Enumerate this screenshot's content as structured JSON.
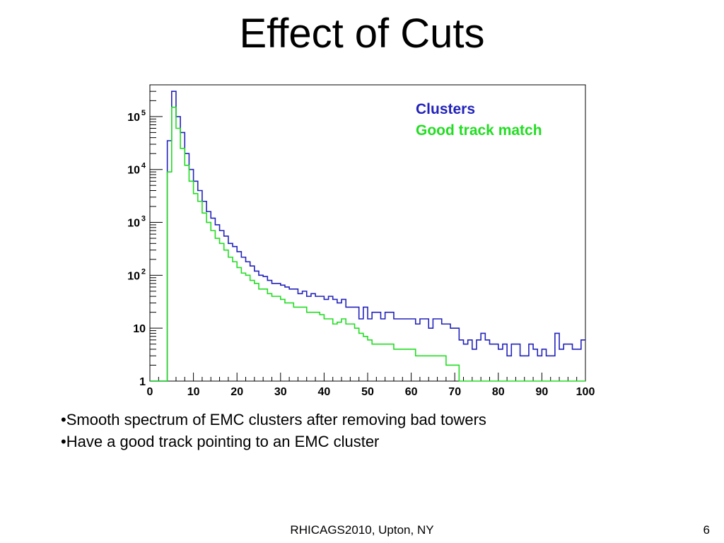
{
  "slide": {
    "title": "Effect of Cuts",
    "bullets": [
      "•Smooth spectrum of EMC clusters after removing bad towers",
      "•Have a good track pointing to an EMC cluster"
    ],
    "footer": "RHICAGS2010, Upton, NY",
    "page_number": "6"
  },
  "chart_data": {
    "type": "line",
    "style": "step-histogram",
    "title": "",
    "xlabel": "",
    "ylabel": "",
    "xlim": [
      0,
      100
    ],
    "ylim": [
      1,
      500000
    ],
    "y_scale": "log",
    "x_ticks": [
      0,
      10,
      20,
      30,
      40,
      50,
      60,
      70,
      80,
      90,
      100
    ],
    "x_tick_labels": [
      "0",
      "10",
      "20",
      "30",
      "40",
      "50",
      "60",
      "70",
      "80",
      "90",
      "100"
    ],
    "y_ticks": [
      1,
      10,
      100,
      1000,
      10000,
      100000
    ],
    "y_tick_labels": [
      {
        "base": "1",
        "exp": ""
      },
      {
        "base": "10",
        "exp": ""
      },
      {
        "base": "10",
        "exp": "2"
      },
      {
        "base": "10",
        "exp": "3"
      },
      {
        "base": "10",
        "exp": "4"
      },
      {
        "base": "10",
        "exp": "5"
      }
    ],
    "grid": false,
    "legend_position": "top-right",
    "bin_edges_start": 0,
    "bin_width": 1,
    "series": [
      {
        "name": "Clusters",
        "color": "#2222bb",
        "values": [
          0,
          0,
          0,
          0,
          35000,
          300000,
          100000,
          50000,
          20000,
          10000,
          6000,
          4000,
          2500,
          1600,
          1200,
          900,
          700,
          550,
          400,
          350,
          280,
          220,
          180,
          150,
          120,
          100,
          95,
          80,
          70,
          70,
          65,
          60,
          55,
          55,
          45,
          50,
          40,
          45,
          40,
          40,
          35,
          40,
          35,
          30,
          35,
          25,
          25,
          25,
          15,
          25,
          15,
          20,
          20,
          15,
          20,
          20,
          15,
          15,
          15,
          15,
          15,
          12,
          15,
          15,
          10,
          15,
          15,
          12,
          12,
          10,
          10,
          6,
          5,
          6,
          4,
          6,
          8,
          6,
          5,
          5,
          4,
          5,
          3,
          5,
          5,
          3,
          3,
          5,
          4,
          3,
          4,
          3,
          3,
          8,
          4,
          5,
          5,
          4,
          4,
          6
        ]
      },
      {
        "name": "Good track match",
        "color": "#22dd22",
        "values": [
          0,
          0,
          0,
          0,
          9000,
          150000,
          60000,
          25000,
          12000,
          6000,
          3500,
          2500,
          1500,
          1000,
          700,
          500,
          400,
          300,
          220,
          180,
          140,
          110,
          100,
          80,
          70,
          55,
          55,
          45,
          40,
          40,
          35,
          30,
          30,
          25,
          25,
          25,
          20,
          20,
          20,
          18,
          15,
          15,
          12,
          13,
          15,
          12,
          12,
          10,
          8,
          7,
          6,
          5,
          5,
          5,
          5,
          5,
          4,
          4,
          4,
          4,
          4,
          3,
          3,
          3,
          3,
          3,
          3,
          3,
          2,
          2,
          2,
          1,
          1,
          1,
          1,
          1,
          1,
          1,
          1,
          1,
          1,
          1,
          1,
          1,
          1,
          1,
          1,
          1,
          1,
          1,
          1,
          1,
          1,
          1,
          1,
          1,
          1,
          1,
          1,
          1
        ]
      }
    ]
  }
}
